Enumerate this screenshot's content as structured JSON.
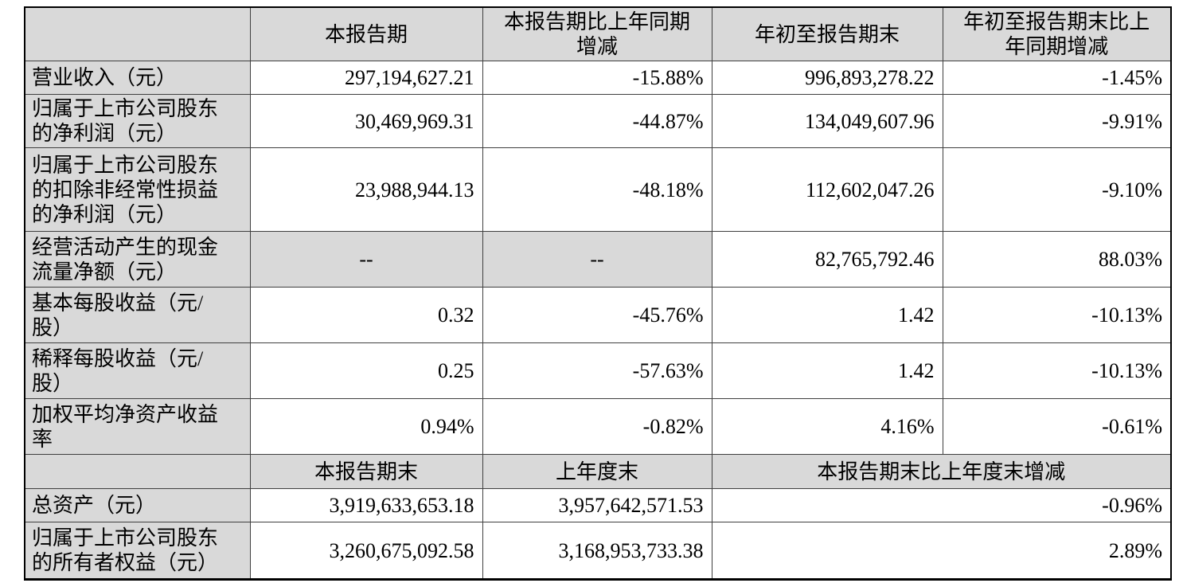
{
  "colors": {
    "header_fill": "#d9d9d9",
    "grid_border": "#3f3f3f",
    "outer_border": "#000000"
  },
  "section1": {
    "headers": {
      "corner": "",
      "current_period": "本报告期",
      "yoy_change": "本报告期比上年同期\n增减",
      "ytd": "年初至报告期末",
      "ytd_yoy_change": "年初至报告期末比上\n年同期增减"
    },
    "rows": [
      {
        "label": "营业收入（元）",
        "values": [
          "297,194,627.21",
          "-15.88%",
          "996,893,278.22",
          "-1.45%"
        ]
      },
      {
        "label": "归属于上市公司股东\n的净利润（元）",
        "values": [
          "30,469,969.31",
          "-44.87%",
          "134,049,607.96",
          "-9.91%"
        ]
      },
      {
        "label": "归属于上市公司股东\n的扣除非经常性损益\n的净利润（元）",
        "values": [
          "23,988,944.13",
          "-48.18%",
          "112,602,047.26",
          "-9.10%"
        ]
      },
      {
        "label": "经营活动产生的现金\n流量净额（元）",
        "values": [
          "--",
          "--",
          "82,765,792.46",
          "88.03%"
        ]
      },
      {
        "label": "基本每股收益（元/\n股）",
        "values": [
          "0.32",
          "-45.76%",
          "1.42",
          "-10.13%"
        ]
      },
      {
        "label": "稀释每股收益（元/\n股）",
        "values": [
          "0.25",
          "-57.63%",
          "1.42",
          "-10.13%"
        ]
      },
      {
        "label": "加权平均净资产收益\n率",
        "values": [
          "0.94%",
          "-0.82%",
          "4.16%",
          "-0.61%"
        ]
      }
    ]
  },
  "section2": {
    "headers": {
      "corner": "",
      "period_end": "本报告期末",
      "prior_year_end": "上年度末",
      "change_vs_prior_year_end": "本报告期末比上年度末增减"
    },
    "rows": [
      {
        "label": "总资产（元）",
        "values": [
          "3,919,633,653.18",
          "3,957,642,571.53",
          "-0.96%"
        ]
      },
      {
        "label": "归属于上市公司股东\n的所有者权益（元）",
        "values": [
          "3,260,675,092.58",
          "3,168,953,733.38",
          "2.89%"
        ]
      }
    ]
  }
}
